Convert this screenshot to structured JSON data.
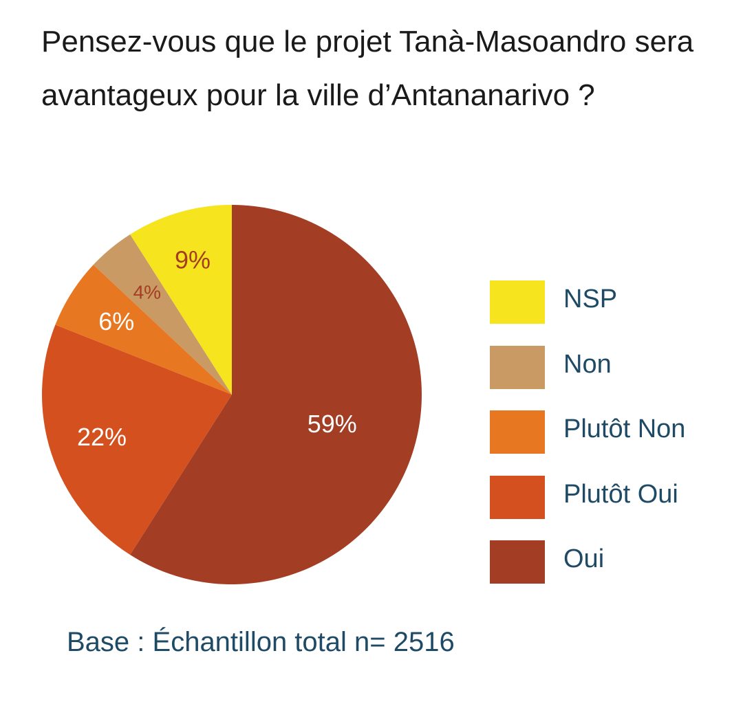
{
  "title": "Pensez-vous que le projet Tanà-Masoandro sera avantageux pour la ville d’Antananarivo ?",
  "footnote": "Base : Échantillon total n= 2516",
  "chart_data": {
    "type": "pie",
    "title": "Pensez-vous que le projet Tanà-Masoandro sera avantageux pour la ville d’Antananarivo ?",
    "slices": [
      {
        "label": "Oui",
        "value": 59,
        "value_label": "59%",
        "color": "#a33d24",
        "label_color": "#ffffff"
      },
      {
        "label": "Plutôt Oui",
        "value": 22,
        "value_label": "22%",
        "color": "#d4501e",
        "label_color": "#ffffff"
      },
      {
        "label": "Plutôt Non",
        "value": 6,
        "value_label": "6%",
        "color": "#e87722",
        "label_color": "#ffffff"
      },
      {
        "label": "Non",
        "value": 4,
        "value_label": "4%",
        "color": "#c99a64",
        "label_color": "#a33d24"
      },
      {
        "label": "NSP",
        "value": 9,
        "value_label": "9%",
        "color": "#f5e41e",
        "label_color": "#a33d24"
      }
    ],
    "legend": [
      "NSP",
      "Non",
      "Plutôt Non",
      "Plutôt Oui",
      "Oui"
    ],
    "legend_position": "right"
  }
}
